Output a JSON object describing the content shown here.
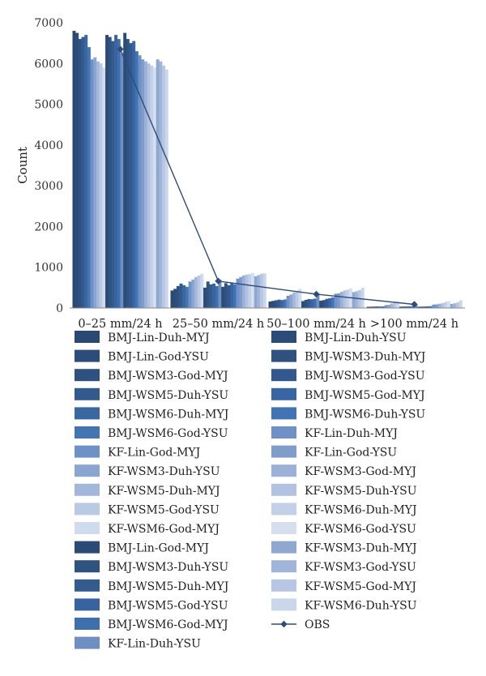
{
  "chart_data": {
    "type": "bar",
    "title": "",
    "xlabel": "",
    "ylabel": "Count",
    "ylim": [
      0,
      7000
    ],
    "yticks": [
      "0",
      "1000",
      "2000",
      "3000",
      "4000",
      "5000",
      "6000",
      "7000"
    ],
    "grid": false,
    "legend_position": "bottom",
    "categories": [
      "0–25 mm/24 h",
      "25–50 mm/24 h",
      "50–100 mm/24 h",
      ">100 mm/24 h"
    ],
    "series": [
      {
        "name": "BMJ-Lin-Duh-MYJ",
        "color": "#2a4873",
        "values": [
          6800,
          430,
          160,
          30
        ]
      },
      {
        "name": "BMJ-Lin-God-YSU",
        "color": "#2c4c79",
        "values": [
          6750,
          470,
          175,
          32
        ]
      },
      {
        "name": "BMJ-WSM3-God-MYJ",
        "color": "#2e5180",
        "values": [
          6600,
          540,
          190,
          34
        ]
      },
      {
        "name": "BMJ-WSM5-Duh-YSU",
        "color": "#325a8d",
        "values": [
          6650,
          600,
          205,
          38
        ]
      },
      {
        "name": "BMJ-WSM6-Duh-MYJ",
        "color": "#3a67a0",
        "values": [
          6700,
          560,
          195,
          36
        ]
      },
      {
        "name": "BMJ-WSM6-God-YSU",
        "color": "#4275b2",
        "values": [
          6400,
          520,
          210,
          40
        ]
      },
      {
        "name": "KF-Lin-God-MYJ",
        "color": "#6f92c6",
        "values": [
          6100,
          650,
          300,
          70
        ]
      },
      {
        "name": "KF-WSM3-Duh-YSU",
        "color": "#8aa5cf",
        "values": [
          6150,
          700,
          330,
          80
        ]
      },
      {
        "name": "KF-WSM5-Duh-MYJ",
        "color": "#a3b7db",
        "values": [
          6050,
          760,
          380,
          110
        ]
      },
      {
        "name": "KF-WSM5-God-YSU",
        "color": "#bac9e4",
        "values": [
          6000,
          800,
          420,
          130
        ]
      },
      {
        "name": "KF-WSM6-God-MYJ",
        "color": "#d0dbed",
        "values": [
          5900,
          840,
          470,
          160
        ]
      },
      {
        "name": "BMJ-Lin-God-MYJ",
        "color": "#2b4a76",
        "values": [
          6700,
          500,
          170,
          33
        ]
      },
      {
        "name": "BMJ-WSM3-Duh-YSU",
        "color": "#2f537f",
        "values": [
          6650,
          650,
          200,
          35
        ]
      },
      {
        "name": "BMJ-WSM5-Duh-MYJ",
        "color": "#335b8e",
        "values": [
          6550,
          580,
          220,
          37
        ]
      },
      {
        "name": "BMJ-WSM5-God-YSU",
        "color": "#3863a0",
        "values": [
          6700,
          600,
          215,
          39
        ]
      },
      {
        "name": "BMJ-WSM6-God-MYJ",
        "color": "#3f70ae",
        "values": [
          6600,
          540,
          230,
          42
        ]
      },
      {
        "name": "KF-Lin-Duh-YSU",
        "color": "#6e8fc2",
        "values": [
          6250,
          690,
          340,
          75
        ]
      },
      {
        "name": "BMJ-Lin-Duh-YSU",
        "color": "#2b4b78",
        "values": [
          6750,
          520,
          180,
          31
        ]
      },
      {
        "name": "BMJ-WSM3-Duh-MYJ",
        "color": "#2f527f",
        "values": [
          6600,
          610,
          195,
          34
        ]
      },
      {
        "name": "BMJ-WSM3-God-YSU",
        "color": "#335890",
        "values": [
          6500,
          560,
          225,
          36
        ]
      },
      {
        "name": "BMJ-WSM5-God-MYJ",
        "color": "#3a65a3",
        "values": [
          6550,
          620,
          240,
          41
        ]
      },
      {
        "name": "BMJ-WSM6-Duh-YSU",
        "color": "#4174b3",
        "values": [
          6300,
          580,
          260,
          45
        ]
      },
      {
        "name": "KF-Lin-Duh-MYJ",
        "color": "#6f91c5",
        "values": [
          6200,
          720,
          350,
          85
        ]
      },
      {
        "name": "KF-Lin-God-YSU",
        "color": "#7f9ccb",
        "values": [
          6100,
          760,
          360,
          90
        ]
      },
      {
        "name": "KF-WSM3-God-MYJ",
        "color": "#9bb1d8",
        "values": [
          6050,
          800,
          400,
          105
        ]
      },
      {
        "name": "KF-WSM5-Duh-YSU",
        "color": "#b2c3e1",
        "values": [
          6000,
          820,
          430,
          120
        ]
      },
      {
        "name": "KF-WSM6-Duh-MYJ",
        "color": "#c3d0e8",
        "values": [
          5950,
          830,
          450,
          150
        ]
      },
      {
        "name": "KF-WSM6-God-YSU",
        "color": "#d6dfee",
        "values": [
          5900,
          860,
          480,
          170
        ]
      },
      {
        "name": "KF-WSM3-Duh-MYJ",
        "color": "#8fa8d2",
        "values": [
          6100,
          780,
          390,
          100
        ]
      },
      {
        "name": "KF-WSM3-God-YSU",
        "color": "#a1b5da",
        "values": [
          6050,
          810,
          410,
          115
        ]
      },
      {
        "name": "KF-WSM5-God-MYJ",
        "color": "#b6c6e3",
        "values": [
          5950,
          840,
          440,
          140
        ]
      },
      {
        "name": "KF-WSM6-Duh-YSU",
        "color": "#cad6ea",
        "values": [
          5850,
          850,
          500,
          190
        ]
      }
    ],
    "line_series": {
      "name": "OBS",
      "color": "#2f4d78",
      "values": [
        6350,
        660,
        340,
        90
      ]
    }
  }
}
